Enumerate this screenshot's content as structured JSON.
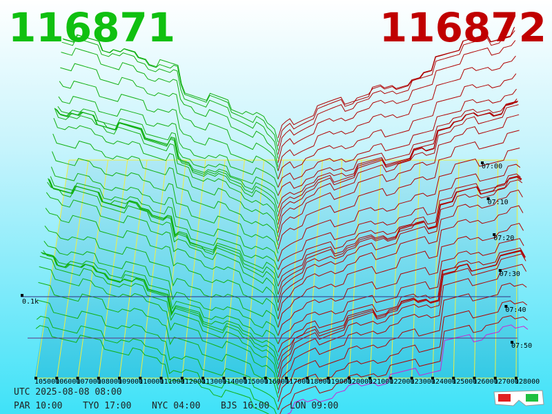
{
  "header": {
    "bid": "116871",
    "ask": "116872"
  },
  "axis": {
    "price_labels": [
      "105000",
      "106000",
      "107000",
      "108000",
      "109000",
      "110000",
      "111000",
      "112000",
      "113000",
      "114000",
      "115000",
      "116000",
      "117000",
      "118000",
      "119000",
      "120000",
      "121000",
      "122000",
      "123000",
      "124000",
      "125000",
      "126000",
      "127000",
      "128000"
    ],
    "time_labels": [
      "07:00",
      "07:10",
      "07:20",
      "07:30",
      "07:40",
      "07:50"
    ],
    "depth_label": "0.1k"
  },
  "footer": {
    "utc": "UTC 2025-08-08 08:00",
    "cities": [
      "PAR 10:00",
      "TYO 17:00",
      "NYC 04:00",
      "BJS 16:00",
      "LON 09:00"
    ]
  }
}
